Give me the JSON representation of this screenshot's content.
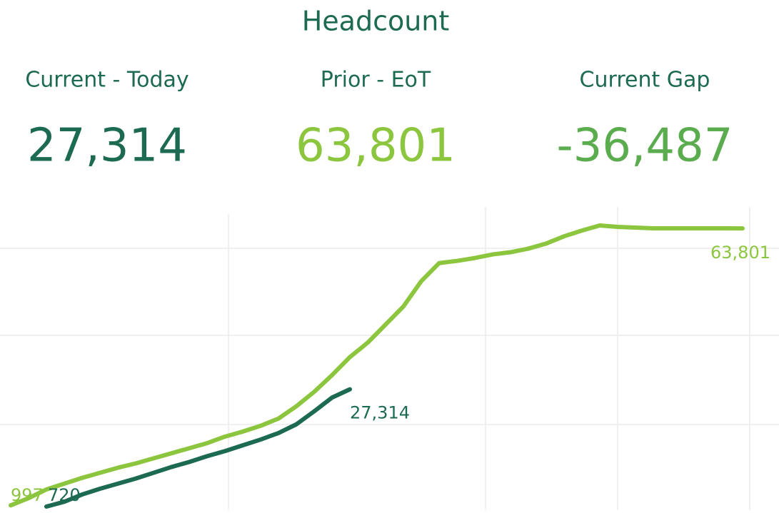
{
  "title": "Headcount",
  "kpis": [
    {
      "label": "Current - Today",
      "value": "27,314",
      "color": "#1d6a52"
    },
    {
      "label": "Prior - EoT",
      "value": "63,801",
      "color": "#8cc63f"
    },
    {
      "label": "Current Gap",
      "value": "-36,487",
      "color": "#5aac4e"
    }
  ],
  "chart_data": {
    "type": "line",
    "series": [
      {
        "name": "Prior",
        "color": "#8cc63f",
        "values": [
          997,
          2637,
          4605,
          5917,
          7229,
          8377,
          9525,
          10509,
          11657,
          12805,
          13953,
          15101,
          16577,
          17725,
          19037,
          20677,
          23465,
          26745,
          30517,
          34617,
          37897,
          41997,
          46097,
          51837,
          55937,
          56429,
          57085,
          57905,
          58397,
          59217,
          60365,
          62005,
          63317,
          64465,
          64137,
          63973,
          63809,
          63809,
          63809,
          63809,
          63809,
          63801
        ],
        "value_labels": [
          "997",
          null,
          null,
          null,
          null,
          null,
          null,
          null,
          null,
          null,
          null,
          null,
          null,
          null,
          null,
          null,
          null,
          null,
          null,
          null,
          null,
          null,
          null,
          null,
          null,
          null,
          null,
          null,
          null,
          null,
          null,
          null,
          null,
          null,
          null,
          null,
          null,
          null,
          null,
          null,
          null,
          "63,801"
        ]
      },
      {
        "name": "Current",
        "color": "#1d6a52",
        "values": [
          null,
          null,
          720,
          1817,
          3457,
          4769,
          5917,
          7065,
          8377,
          9689,
          10837,
          12149,
          13297,
          14609,
          15921,
          17397,
          19365,
          22317,
          25433,
          27314,
          null,
          null,
          null,
          null,
          null,
          null,
          null,
          null,
          null,
          null,
          null,
          null,
          null,
          null,
          null,
          null,
          null,
          null,
          null,
          null,
          null,
          null
        ],
        "value_labels": [
          null,
          null,
          "720",
          null,
          null,
          null,
          null,
          null,
          null,
          null,
          null,
          null,
          null,
          null,
          null,
          null,
          null,
          null,
          null,
          "27,314",
          null,
          null,
          null,
          null,
          null,
          null,
          null,
          null,
          null,
          null,
          null,
          null,
          null,
          null,
          null,
          null,
          null,
          null,
          null,
          null,
          null,
          null
        ]
      }
    ]
  }
}
